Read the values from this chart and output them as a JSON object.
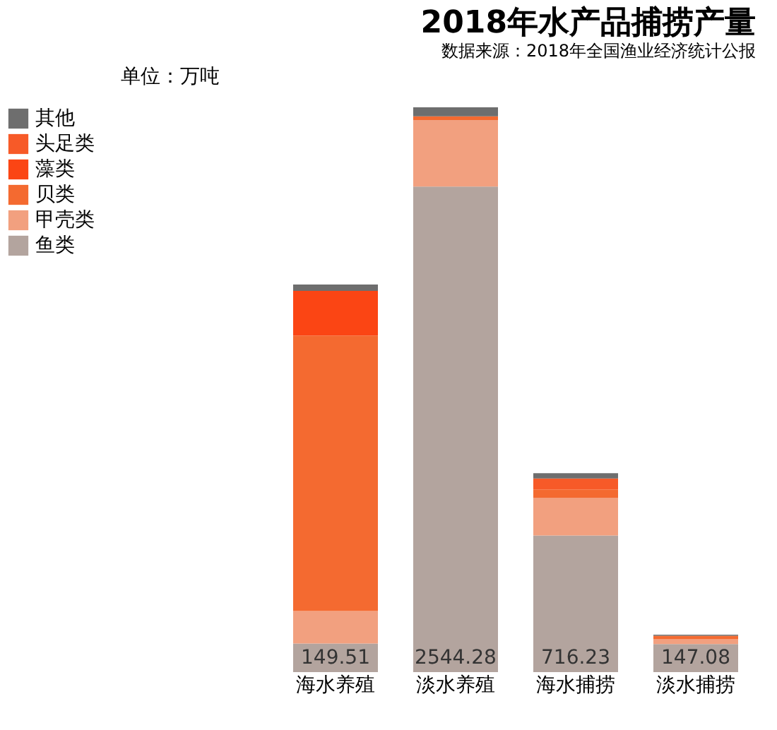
{
  "chart_data": {
    "type": "bar",
    "title": "2018年水产品捕捞产量",
    "ylabel": "单位：万吨",
    "annotations": [
      "数据来源：2018年全国渔业经济统计公报"
    ],
    "categories": [
      "海水养殖",
      "淡水养殖",
      "海水捕捞",
      "淡水捕捞"
    ],
    "stacked": true,
    "tick_labels": "x",
    "grid": false,
    "legend": "left",
    "series": [
      {
        "name": "鱼类",
        "color": "#b3a49e",
        "values": [
          149.51,
          2544.28,
          716.23,
          147.08
        ],
        "value_labels": [
          "149.51",
          "2544.28",
          "716.23",
          "147.08"
        ]
      },
      {
        "name": "甲壳类",
        "color": "#f2a07f",
        "values": [
          170.29,
          349.19,
          197.65,
          24.85
        ]
      },
      {
        "name": "贝类",
        "color": "#f46a30",
        "values": [
          1443.93,
          19.62,
          43.84,
          18.74
        ]
      },
      {
        "name": "藻类",
        "color": "#fb4514",
        "values": [
          234.39,
          0,
          null,
          0
        ]
      },
      {
        "name": "头足类",
        "color": "#f75a28",
        "values": [
          0,
          0,
          57.22,
          0
        ]
      },
      {
        "name": "其他",
        "color": "#6e6e6e",
        "values": [
          33.1,
          46.74,
          27.67,
          5.72
        ]
      }
    ]
  }
}
